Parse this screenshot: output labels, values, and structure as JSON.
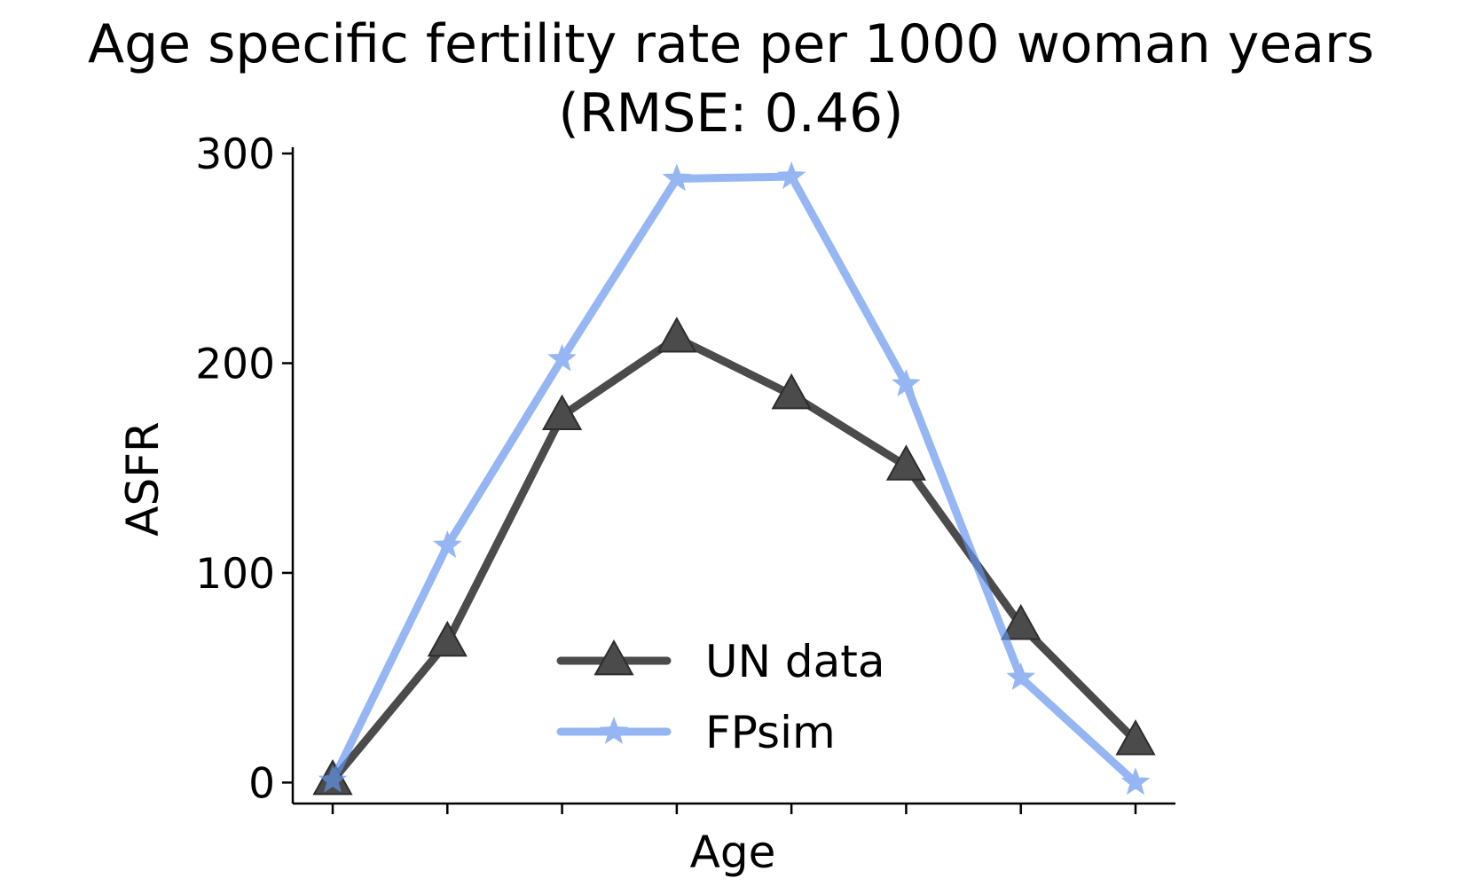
{
  "chart_data": {
    "type": "line",
    "title": "Age specific fertility rate per 1000 woman years",
    "subtitle": "(RMSE: 0.46)",
    "xlabel": "Age",
    "ylabel": "ASFR",
    "x": [
      0,
      1,
      2,
      3,
      4,
      5,
      6,
      7
    ],
    "x_tick_labels_shown": false,
    "ylim": [
      -10,
      303
    ],
    "yticks": [
      0,
      100,
      200,
      300
    ],
    "grid": false,
    "legend_position": "lower-center",
    "series": [
      {
        "name": "UN data",
        "color": "#333333",
        "marker": "triangle",
        "values": [
          1,
          67,
          175,
          212,
          185,
          151,
          75,
          20
        ]
      },
      {
        "name": "FPsim",
        "color": "#6495ED",
        "marker": "star",
        "values": [
          1,
          113,
          202,
          288,
          289,
          190,
          50,
          0
        ]
      }
    ]
  }
}
